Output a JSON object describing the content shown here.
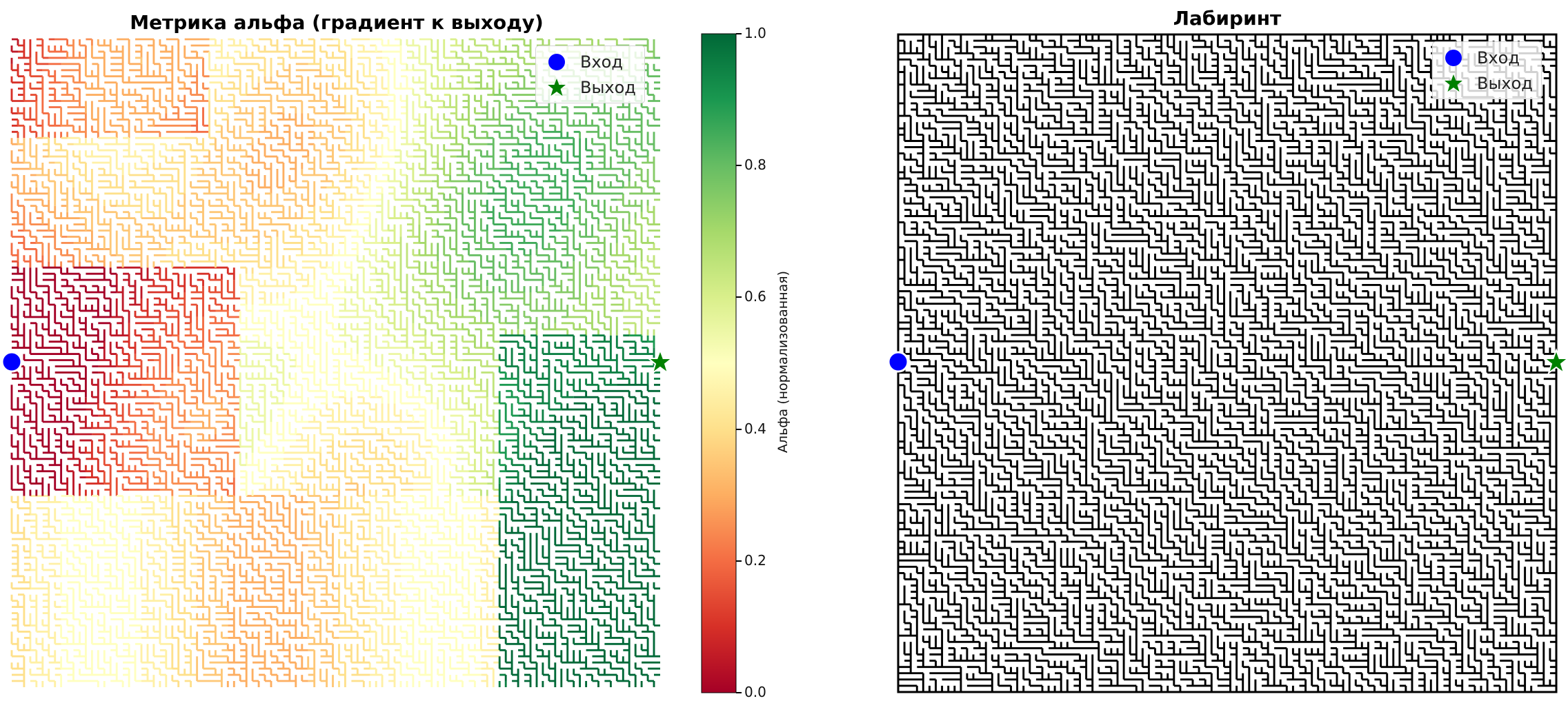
{
  "left_panel": {
    "title": "Метрика альфа (градиент к выходу)",
    "legend": {
      "entry": "Вход",
      "exit": "Выход"
    }
  },
  "colorbar": {
    "label": "Альфа (нормализованная)",
    "ticks": [
      "0.0",
      "0.2",
      "0.4",
      "0.6",
      "0.8",
      "1.0"
    ],
    "colormap": "RdYlGn",
    "range": [
      0,
      1
    ]
  },
  "right_panel": {
    "title": "Лабиринт",
    "legend": {
      "entry": "Вход",
      "exit": "Выход"
    }
  },
  "colors": {
    "entry_marker": "#0000ff",
    "exit_marker": "#008000",
    "maze_wall": "#000000"
  },
  "chart_data": [
    {
      "type": "heatmap",
      "title": "Метрика альфа (градиент к выходу)",
      "colormap": "RdYlGn",
      "value_range": [
        0,
        1
      ],
      "colorbar_label": "Альфа (нормализованная)",
      "colorbar_ticks": [
        0.0,
        0.2,
        0.4,
        0.6,
        0.8,
        1.0
      ],
      "markers": [
        {
          "name": "Вход",
          "shape": "circle",
          "color": "#0000ff",
          "side": "left",
          "row_fraction": 0.5
        },
        {
          "name": "Выход",
          "shape": "star",
          "color": "#008000",
          "side": "right",
          "row_fraction": 0.5
        }
      ],
      "legend_position": "upper right",
      "regions_description": "low alpha (red) near entry on left, high alpha (green) near exit on right"
    },
    {
      "type": "heatmap",
      "title": "Лабиринт",
      "colormap": "binary",
      "markers": [
        {
          "name": "Вход",
          "shape": "circle",
          "color": "#0000ff",
          "side": "left",
          "row_fraction": 0.5
        },
        {
          "name": "Выход",
          "shape": "star",
          "color": "#008000",
          "side": "right",
          "row_fraction": 0.5
        }
      ],
      "legend_position": "upper right"
    }
  ]
}
